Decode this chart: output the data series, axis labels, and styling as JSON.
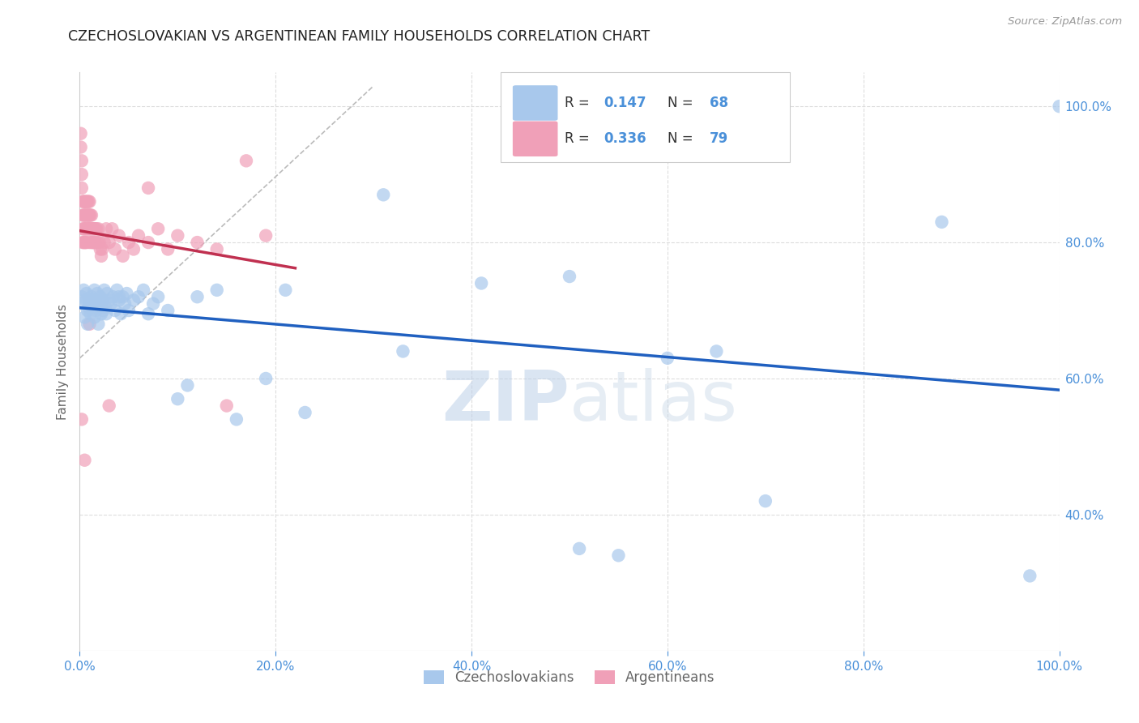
{
  "title": "CZECHOSLOVAKIAN VS ARGENTINEAN FAMILY HOUSEHOLDS CORRELATION CHART",
  "source": "Source: ZipAtlas.com",
  "ylabel": "Family Households",
  "legend_label_blue": "Czechoslovakians",
  "legend_label_pink": "Argentineans",
  "R_blue": 0.147,
  "N_blue": 68,
  "R_pink": 0.336,
  "N_pink": 79,
  "blue_color": "#A8C8EC",
  "pink_color": "#F0A0B8",
  "blue_line_color": "#2060C0",
  "pink_line_color": "#C03050",
  "axis_tick_color": "#4A90D9",
  "xlim": [
    0.0,
    1.0
  ],
  "ylim": [
    0.2,
    1.05
  ],
  "watermark_zip": "ZIP",
  "watermark_atlas": "atlas",
  "xticks": [
    0.0,
    0.2,
    0.4,
    0.6,
    0.8,
    1.0
  ],
  "xtick_labels": [
    "0.0%",
    "20.0%",
    "40.0%",
    "60.0%",
    "80.0%",
    "100.0%"
  ],
  "ytick_labels_right": [
    "40.0%",
    "60.0%",
    "80.0%",
    "100.0%"
  ],
  "yticks_right": [
    0.4,
    0.6,
    0.8,
    1.0
  ],
  "background_color": "#FFFFFF",
  "grid_color": "#DDDDDD",
  "blue_x": [
    0.002,
    0.003,
    0.004,
    0.005,
    0.006,
    0.007,
    0.008,
    0.008,
    0.009,
    0.01,
    0.011,
    0.012,
    0.013,
    0.014,
    0.015,
    0.015,
    0.016,
    0.017,
    0.018,
    0.019,
    0.02,
    0.021,
    0.022,
    0.023,
    0.024,
    0.025,
    0.026,
    0.027,
    0.028,
    0.03,
    0.032,
    0.034,
    0.036,
    0.038,
    0.04,
    0.042,
    0.044,
    0.046,
    0.048,
    0.05,
    0.055,
    0.06,
    0.065,
    0.07,
    0.075,
    0.08,
    0.09,
    0.1,
    0.11,
    0.12,
    0.14,
    0.16,
    0.19,
    0.21,
    0.23,
    0.31,
    0.33,
    0.41,
    0.5,
    0.51,
    0.55,
    0.6,
    0.65,
    0.7,
    0.88,
    0.97,
    0.04,
    1.0
  ],
  "blue_y": [
    0.72,
    0.71,
    0.73,
    0.69,
    0.715,
    0.725,
    0.7,
    0.68,
    0.705,
    0.715,
    0.695,
    0.72,
    0.705,
    0.71,
    0.73,
    0.69,
    0.715,
    0.7,
    0.725,
    0.68,
    0.71,
    0.72,
    0.695,
    0.715,
    0.7,
    0.73,
    0.705,
    0.695,
    0.725,
    0.715,
    0.71,
    0.72,
    0.7,
    0.73,
    0.715,
    0.695,
    0.72,
    0.71,
    0.725,
    0.7,
    0.715,
    0.72,
    0.73,
    0.695,
    0.71,
    0.72,
    0.7,
    0.57,
    0.59,
    0.72,
    0.73,
    0.54,
    0.6,
    0.73,
    0.55,
    0.87,
    0.64,
    0.74,
    0.75,
    0.35,
    0.34,
    0.63,
    0.64,
    0.42,
    0.83,
    0.31,
    0.72,
    1.0
  ],
  "pink_x": [
    0.001,
    0.001,
    0.002,
    0.002,
    0.002,
    0.003,
    0.003,
    0.003,
    0.003,
    0.004,
    0.004,
    0.004,
    0.004,
    0.005,
    0.005,
    0.005,
    0.005,
    0.006,
    0.006,
    0.006,
    0.006,
    0.007,
    0.007,
    0.007,
    0.007,
    0.008,
    0.008,
    0.008,
    0.009,
    0.009,
    0.009,
    0.01,
    0.01,
    0.01,
    0.01,
    0.011,
    0.011,
    0.012,
    0.012,
    0.012,
    0.013,
    0.013,
    0.014,
    0.014,
    0.015,
    0.015,
    0.016,
    0.016,
    0.017,
    0.018,
    0.019,
    0.02,
    0.021,
    0.022,
    0.023,
    0.025,
    0.027,
    0.03,
    0.033,
    0.036,
    0.04,
    0.044,
    0.05,
    0.055,
    0.06,
    0.07,
    0.08,
    0.09,
    0.1,
    0.12,
    0.14,
    0.15,
    0.17,
    0.19,
    0.002,
    0.005,
    0.01,
    0.03,
    0.07
  ],
  "pink_y": [
    0.96,
    0.94,
    0.92,
    0.9,
    0.88,
    0.86,
    0.84,
    0.82,
    0.8,
    0.86,
    0.84,
    0.82,
    0.8,
    0.86,
    0.84,
    0.82,
    0.8,
    0.86,
    0.84,
    0.82,
    0.8,
    0.86,
    0.84,
    0.82,
    0.8,
    0.86,
    0.84,
    0.82,
    0.86,
    0.84,
    0.82,
    0.86,
    0.84,
    0.82,
    0.8,
    0.84,
    0.82,
    0.84,
    0.82,
    0.8,
    0.82,
    0.8,
    0.82,
    0.8,
    0.82,
    0.8,
    0.82,
    0.8,
    0.82,
    0.8,
    0.82,
    0.8,
    0.79,
    0.78,
    0.79,
    0.8,
    0.82,
    0.8,
    0.82,
    0.79,
    0.81,
    0.78,
    0.8,
    0.79,
    0.81,
    0.8,
    0.82,
    0.79,
    0.81,
    0.8,
    0.79,
    0.56,
    0.92,
    0.81,
    0.54,
    0.48,
    0.68,
    0.56,
    0.88
  ]
}
